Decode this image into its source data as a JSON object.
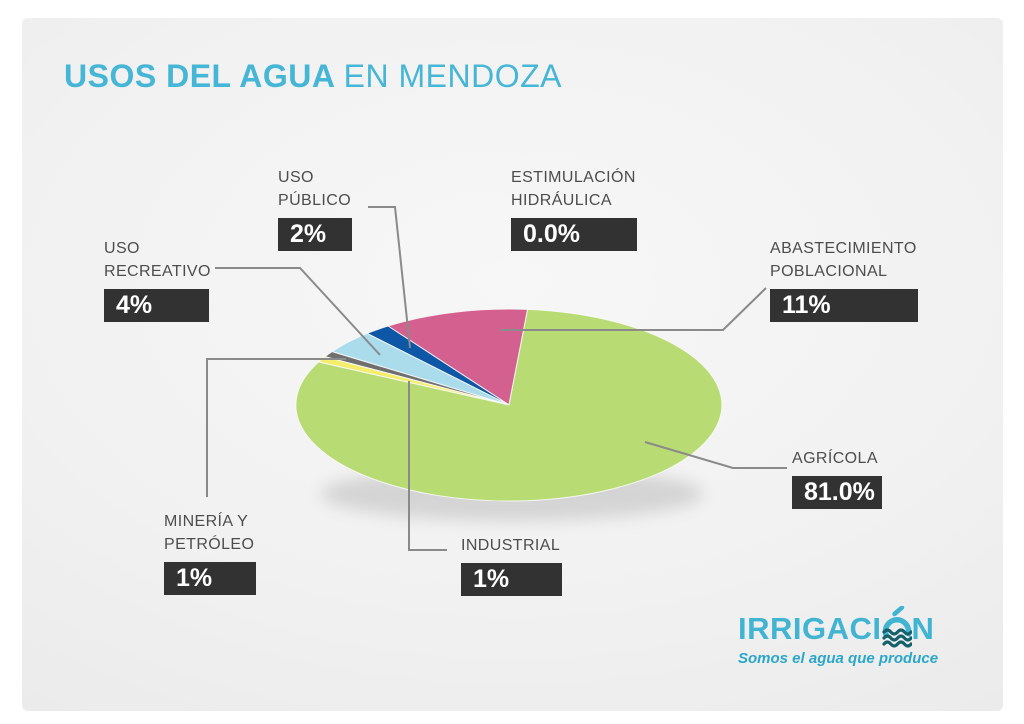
{
  "title": {
    "emphasis": "USOS DEL AGUA",
    "rest": "EN MENDOZA"
  },
  "chart_data": {
    "type": "pie",
    "title": "USOS DEL AGUA EN MENDOZA",
    "unit": "%",
    "legend_position": "callout-labels",
    "slices": [
      {
        "id": "estimulacion-hidraulica",
        "lines": [
          "ESTIMULACIÓN",
          "HIDRÁULICA"
        ],
        "value": 0.0,
        "value_label": "0.0%",
        "color": null
      },
      {
        "id": "abastecimiento-poblacional",
        "lines": [
          "ABASTECIMIENTO",
          "POBLACIONAL"
        ],
        "value": 11,
        "value_label": "11%",
        "color": "#d4608f"
      },
      {
        "id": "uso-publico",
        "lines": [
          "USO",
          "PÚBLICO"
        ],
        "value": 2,
        "value_label": "2%",
        "color": "#0e56a6"
      },
      {
        "id": "uso-recreativo",
        "lines": [
          "USO",
          "RECREATIVO"
        ],
        "value": 4,
        "value_label": "4%",
        "color": "#aadcec"
      },
      {
        "id": "mineria-y-petroleo",
        "lines": [
          "MINERÍA Y",
          "PETRÓLEO"
        ],
        "value": 1,
        "value_label": "1%",
        "color": "#6f6f6f"
      },
      {
        "id": "industrial",
        "lines": [
          "INDUSTRIAL"
        ],
        "value": 1,
        "value_label": "1%",
        "color": "#f5ee6d"
      },
      {
        "id": "agricola",
        "lines": [
          "AGRÍCOLA"
        ],
        "value": 81.0,
        "value_label": "81.0%",
        "color": "#b8dc73"
      }
    ]
  },
  "logo": {
    "wordmark": "IRRIGACIÓN",
    "wordmark_prefix": "IRRIGACI",
    "wordmark_suffix": "N",
    "tagline": "Somos el agua que produce",
    "brand_color": "#41b4d2",
    "wave_color": "#15606d"
  },
  "colors": {
    "title_blue": "#45b6d5",
    "label_box_bg": "#323232",
    "label_text": "#4d4d4d",
    "leader_line": "#8a8a8a"
  }
}
